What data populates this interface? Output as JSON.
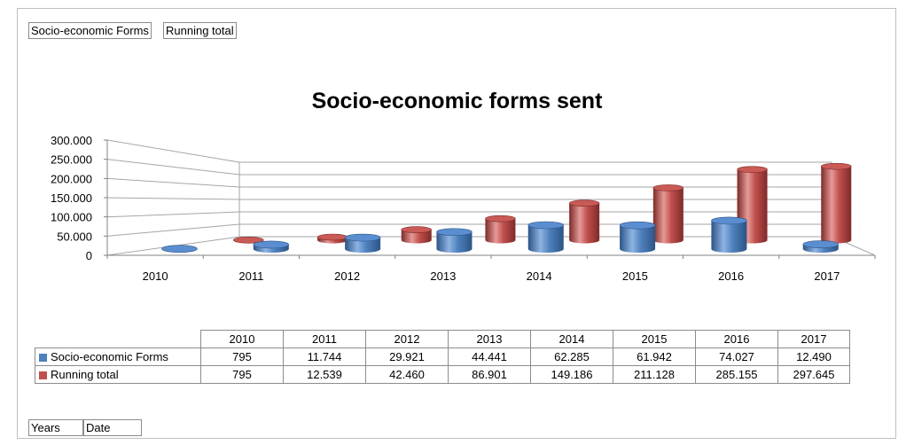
{
  "header_chips": [
    "Socio-economic Forms",
    "Running total"
  ],
  "footer_chips": [
    "Years",
    "Date"
  ],
  "chart_data": {
    "type": "bar",
    "subtype": "3d-cylinder-clustered",
    "title": "Socio-economic forms sent",
    "categories": [
      "2010",
      "2011",
      "2012",
      "2013",
      "2014",
      "2015",
      "2016",
      "2017"
    ],
    "series": [
      {
        "name": "Socio-economic Forms",
        "color": "#4f81bd",
        "values": [
          795,
          11744,
          29921,
          44441,
          62285,
          61942,
          74027,
          12490
        ],
        "labels": [
          "795",
          "11.744",
          "29.921",
          "44.441",
          "62.285",
          "61.942",
          "74.027",
          "12.490"
        ]
      },
      {
        "name": "Running total",
        "color": "#c0504d",
        "values": [
          795,
          12539,
          42460,
          86901,
          149186,
          211128,
          285155,
          297645
        ],
        "labels": [
          "795",
          "12.539",
          "42.460",
          "86.901",
          "149.186",
          "211.128",
          "285.155",
          "297.645"
        ]
      }
    ],
    "yticks": [
      "0",
      "50.000",
      "100.000",
      "150.000",
      "200.000",
      "250.000",
      "300.000"
    ],
    "ylim": [
      0,
      300000
    ],
    "grid": true,
    "data_table": true
  }
}
